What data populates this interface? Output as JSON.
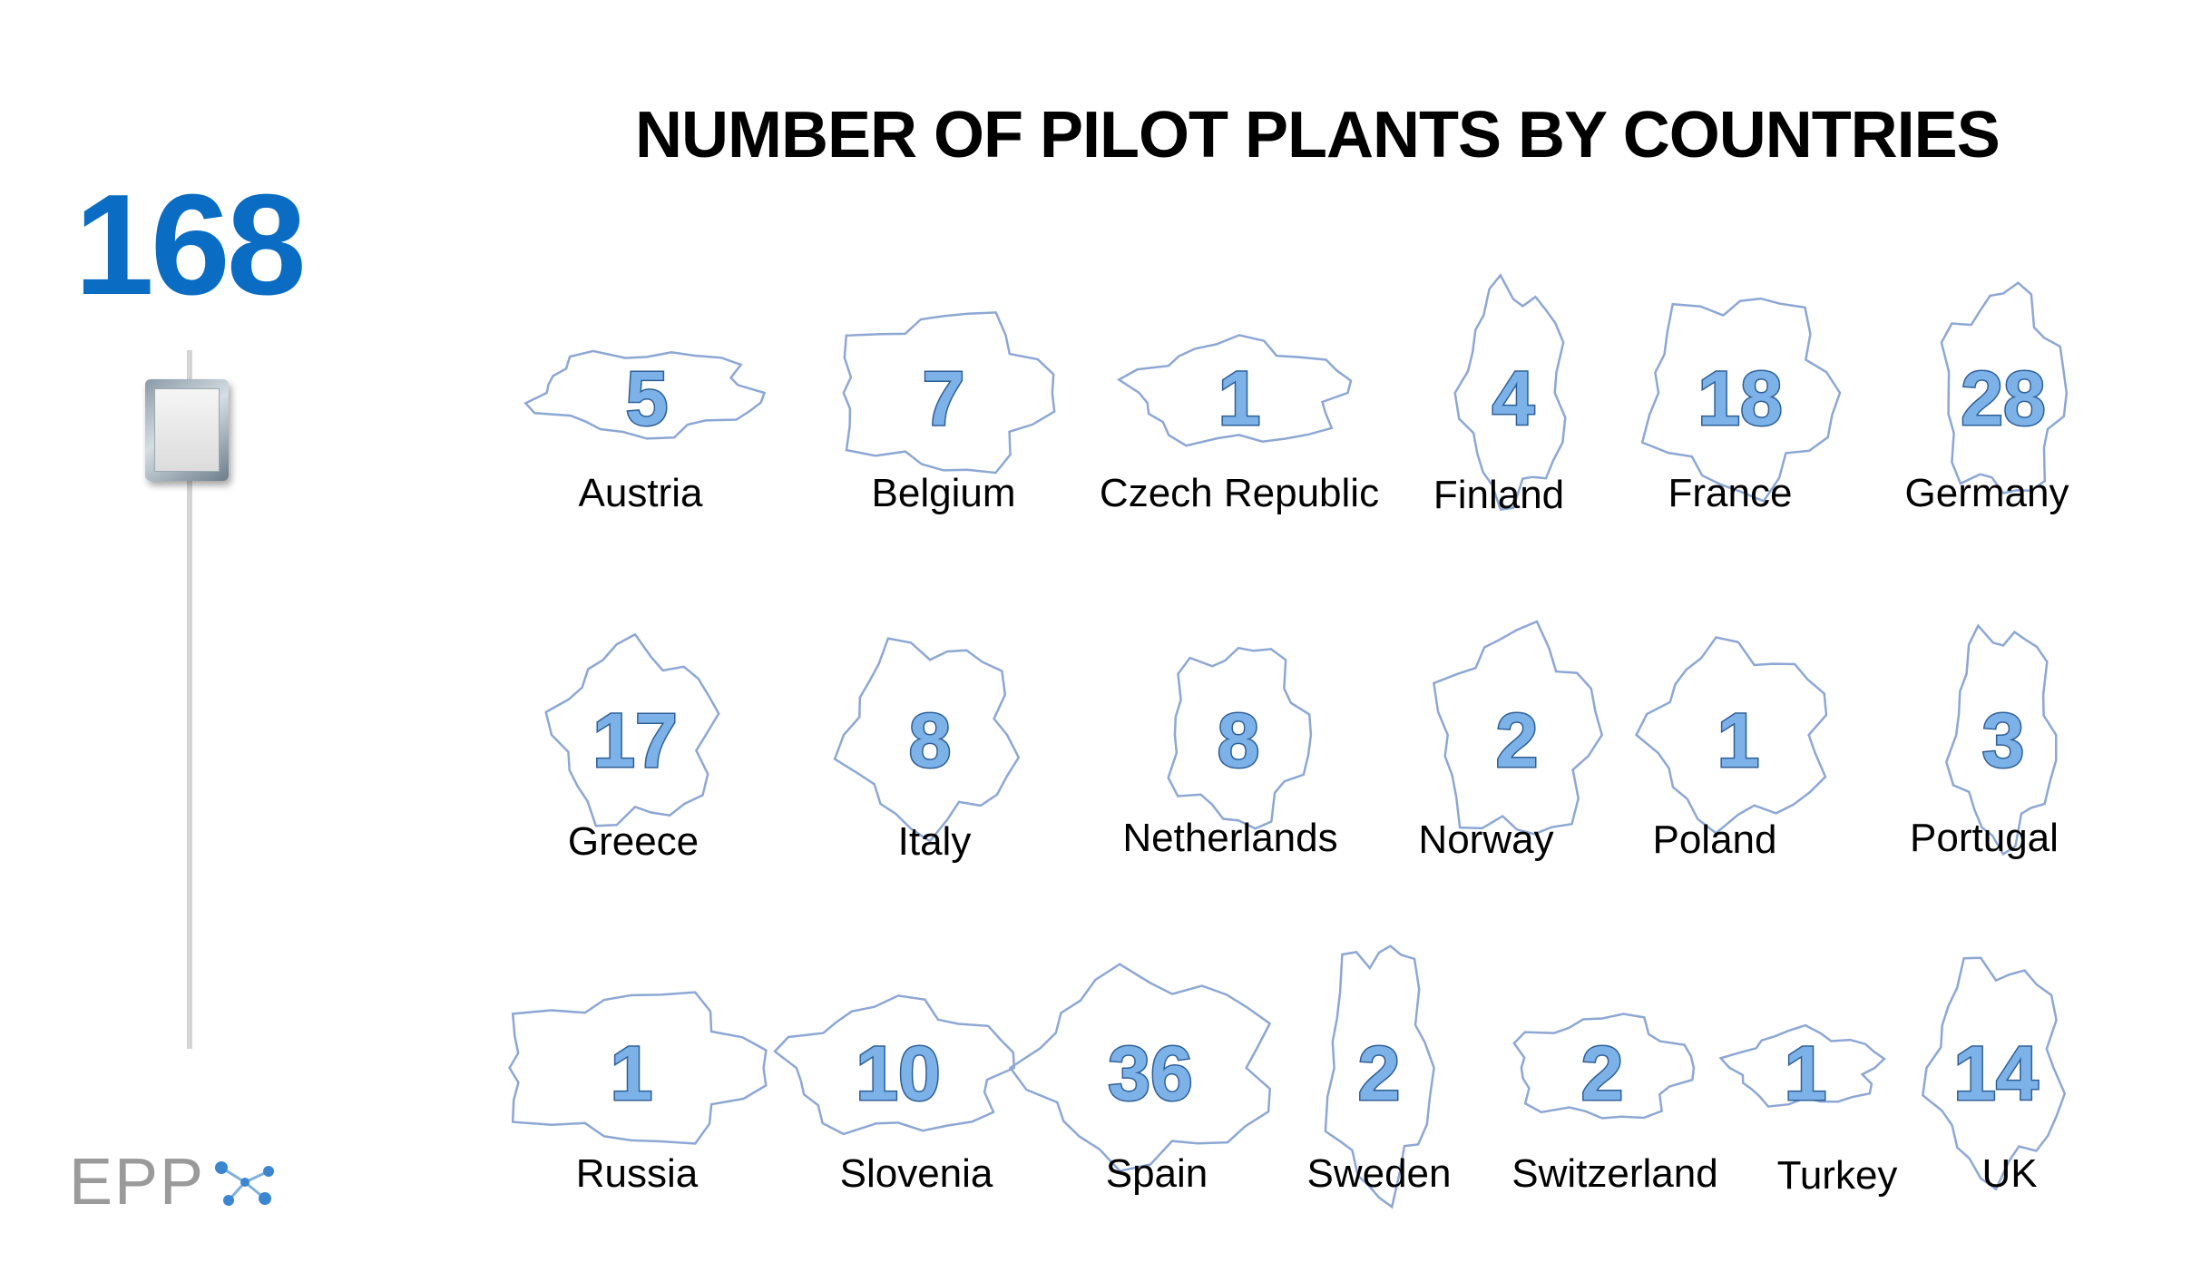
{
  "total": "168",
  "logo": {
    "text": "EPP"
  },
  "chart_data": {
    "type": "table",
    "title": "NUMBER OF PILOT PLANTS BY COUNTRIES",
    "categories": [
      "Austria",
      "Belgium",
      "Czech Republic",
      "Finland",
      "France",
      "Germany",
      "Greece",
      "Italy",
      "Netherlands",
      "Norway",
      "Poland",
      "Portugal",
      "Russia",
      "Slovenia",
      "Spain",
      "Sweden",
      "Switzerland",
      "Turkey",
      "UK"
    ],
    "values": [
      5,
      7,
      1,
      4,
      18,
      28,
      17,
      8,
      8,
      2,
      1,
      3,
      1,
      10,
      36,
      2,
      2,
      1,
      14
    ],
    "colors": {
      "count_fill": "#7db2e8",
      "count_stroke": "#2d5f96",
      "outline": "#8da7d4",
      "total": "#0a6cc2"
    }
  }
}
